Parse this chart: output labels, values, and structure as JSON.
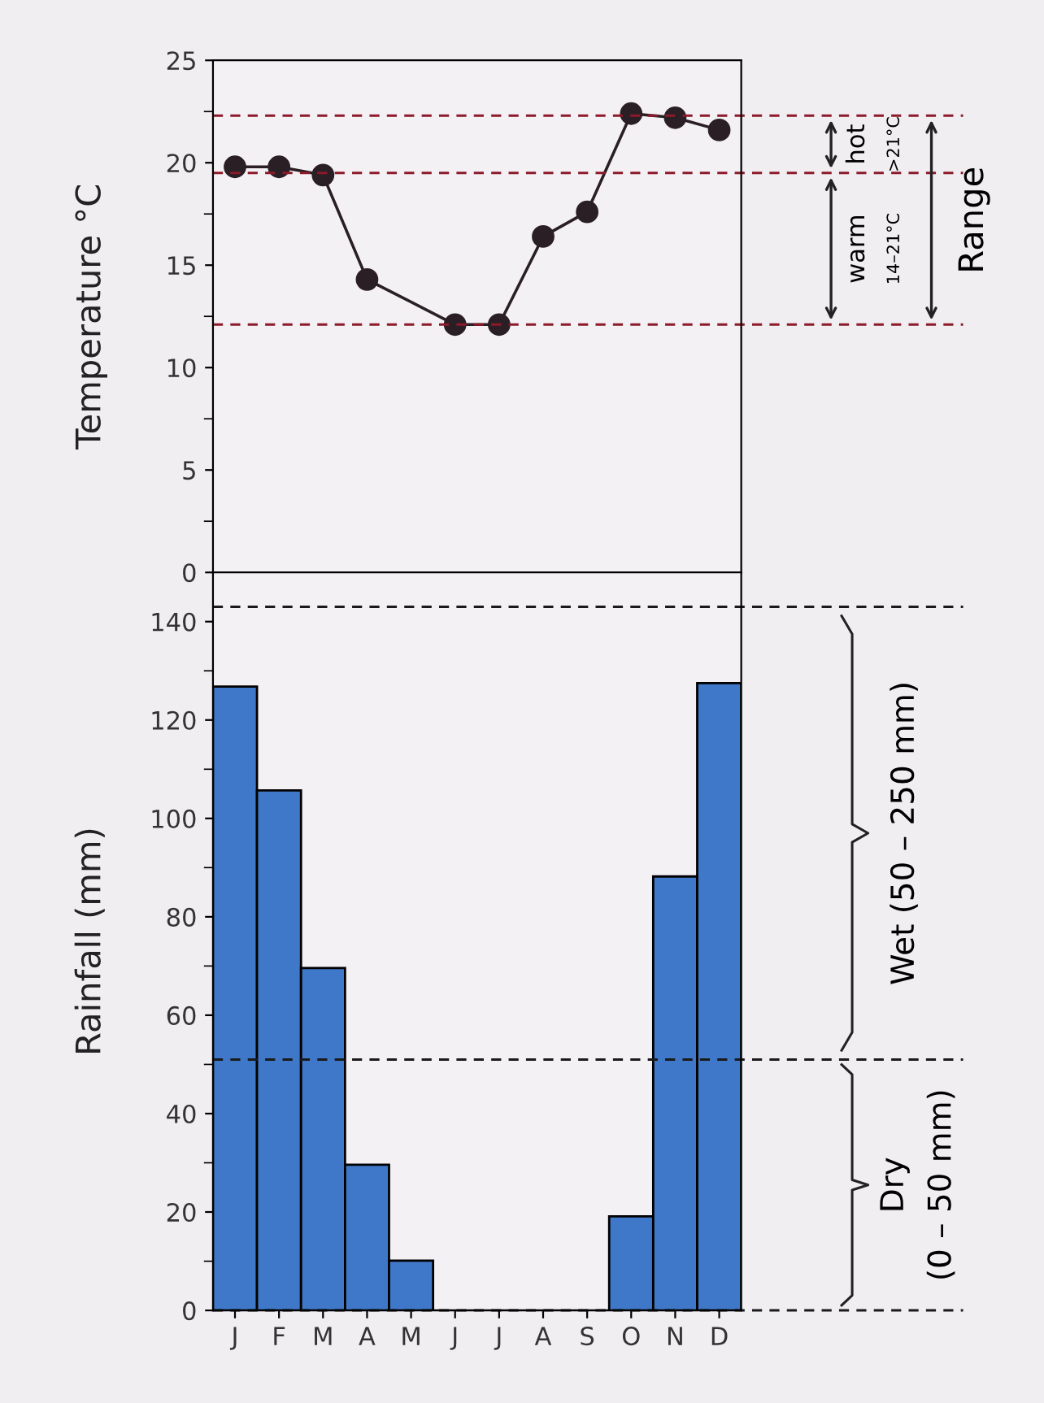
{
  "chart_data": [
    {
      "type": "line",
      "ylabel": "Temperature °C",
      "categories": [
        null,
        null,
        null,
        null,
        null,
        null,
        null,
        null,
        null,
        null,
        null,
        null
      ],
      "series": [
        {
          "color": "#2a1f24",
          "values": [
            19.8,
            19.8,
            19.4,
            14.3,
            null,
            12.1,
            12.1,
            16.4,
            17.6,
            22.4,
            22.2,
            21.6
          ]
        }
      ],
      "marker": "circle",
      "line_style": "solid",
      "ylim": [
        0,
        25
      ],
      "yticks": [
        0,
        5,
        10,
        15,
        20,
        25
      ],
      "tick_labels": "y",
      "grid": false,
      "legend": false,
      "ref_lines": [
        {
          "axis": "y",
          "value": 22.3,
          "color": "#8b1a2b",
          "line_style": "dashed"
        },
        {
          "axis": "y",
          "value": 19.5,
          "color": "#8b1a2b",
          "line_style": "dashed"
        },
        {
          "axis": "y",
          "value": 12.1,
          "color": "#8b1a2b",
          "line_style": "dashed"
        }
      ],
      "annotations": [
        "hot",
        ">21°C",
        "warm",
        "14–21°C",
        "Range"
      ]
    },
    {
      "type": "bar",
      "ylabel": "Rainfall (mm)",
      "categories": [
        "J",
        "F",
        "M",
        "A",
        "M",
        "J",
        "J",
        "A",
        "S",
        "O",
        "N",
        "D"
      ],
      "values": [
        126.8,
        105.7,
        69.6,
        29.6,
        10.1,
        0,
        0,
        0,
        0,
        19.1,
        88.2,
        127.5
      ],
      "color": "#3f78c8",
      "ylim": [
        0,
        150
      ],
      "yticks": [
        0,
        20,
        40,
        60,
        80,
        100,
        120,
        140
      ],
      "grid": false,
      "legend": false,
      "ref_lines": [
        {
          "axis": "y",
          "value": 143,
          "color": "#1a1a1a",
          "line_style": "dashed"
        },
        {
          "axis": "y",
          "value": 51,
          "color": "#1a1a1a",
          "line_style": "dashed"
        },
        {
          "axis": "y",
          "value": 0,
          "color": "#1a1a1a",
          "line_style": "dashed"
        }
      ],
      "annotations": [
        "Wet (50 – 250 mm)",
        "Dry",
        "(0 – 50 mm)"
      ]
    }
  ]
}
